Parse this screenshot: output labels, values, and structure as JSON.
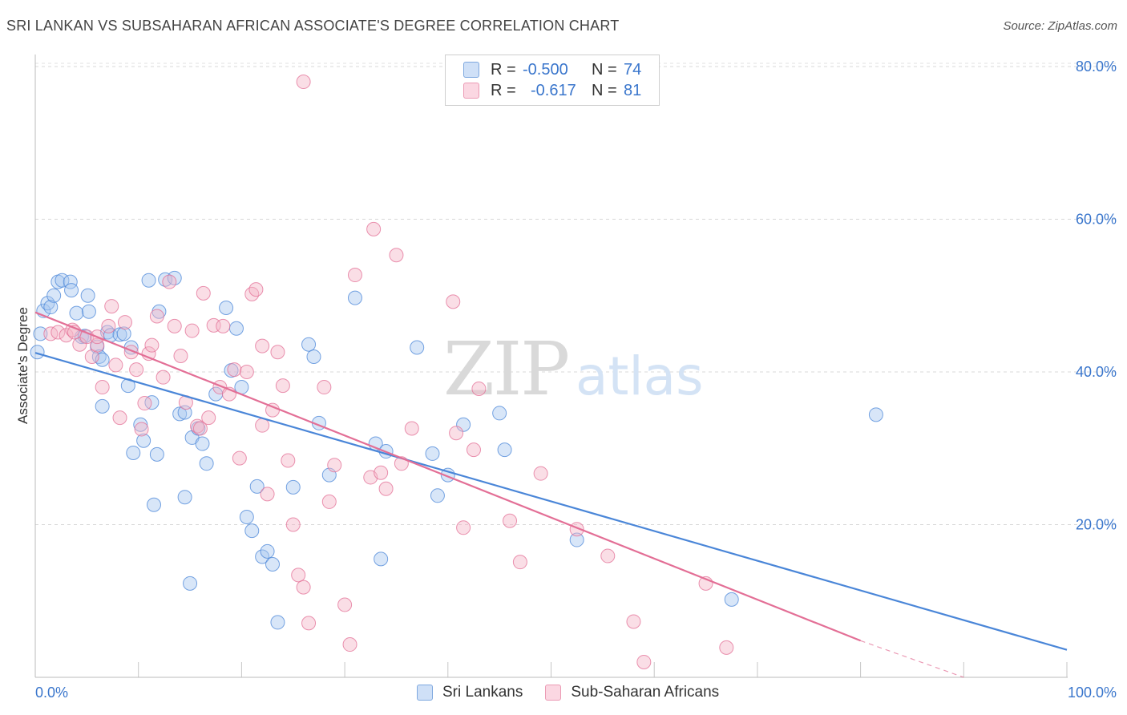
{
  "title": "SRI LANKAN VS SUBSAHARAN AFRICAN ASSOCIATE'S DEGREE CORRELATION CHART",
  "source": "Source: ZipAtlas.com",
  "watermark": {
    "zip": "ZIP",
    "atlas": "atlas"
  },
  "legend": {
    "rows": [
      {
        "r_label": "R =",
        "r_value": "-0.500",
        "n_label": "N =",
        "n_value": "74",
        "color": "#a9c8f0"
      },
      {
        "r_label": "R =",
        "r_value": "-0.617",
        "n_label": "N =",
        "n_value": "81",
        "color": "#f5b5c8"
      }
    ]
  },
  "bottom_legend": [
    {
      "label": "Sri Lankans",
      "color": "#a9c8f0"
    },
    {
      "label": "Sub-Saharan Africans",
      "color": "#f5b5c8"
    }
  ],
  "chart_data": {
    "type": "scatter",
    "title": "SRI LANKAN VS SUBSAHARAN AFRICAN ASSOCIATE'S DEGREE CORRELATION CHART",
    "xlabel": "",
    "ylabel": "Associate's Degree",
    "xlim": [
      0,
      100
    ],
    "ylim": [
      0,
      82
    ],
    "x_tick_labels": [
      "0.0%",
      "100.0%"
    ],
    "y_ticks": [
      20,
      40,
      60,
      80
    ],
    "y_tick_labels": [
      "20.0%",
      "40.0%",
      "60.0%",
      "80.0%"
    ],
    "grid": true,
    "legend_position": "top-center",
    "series": [
      {
        "name": "Sri Lankans",
        "color": "#4a86d8",
        "fill": "#a9c8f0",
        "trend": {
          "x": [
            0,
            100
          ],
          "y": [
            42.5,
            3.6
          ]
        },
        "points": [
          [
            0.2,
            42.6
          ],
          [
            0.5,
            45.0
          ],
          [
            0.8,
            48.0
          ],
          [
            1.2,
            49.0
          ],
          [
            1.5,
            48.5
          ],
          [
            1.8,
            50.0
          ],
          [
            2.2,
            51.8
          ],
          [
            2.6,
            52.0
          ],
          [
            3.4,
            51.8
          ],
          [
            3.5,
            50.7
          ],
          [
            4.0,
            47.7
          ],
          [
            4.5,
            44.6
          ],
          [
            4.8,
            44.7
          ],
          [
            5.2,
            47.9
          ],
          [
            5.1,
            50.0
          ],
          [
            6.0,
            43.3
          ],
          [
            6.2,
            42.0
          ],
          [
            6.5,
            41.6
          ],
          [
            7.0,
            45.2
          ],
          [
            7.3,
            44.8
          ],
          [
            8.2,
            44.9
          ],
          [
            8.6,
            45.0
          ],
          [
            9.3,
            43.2
          ],
          [
            9.0,
            38.2
          ],
          [
            10.2,
            33.1
          ],
          [
            10.5,
            31.0
          ],
          [
            11.0,
            52.0
          ],
          [
            11.3,
            36.0
          ],
          [
            11.8,
            29.2
          ],
          [
            12.0,
            47.9
          ],
          [
            12.6,
            52.1
          ],
          [
            13.5,
            52.3
          ],
          [
            14.0,
            34.5
          ],
          [
            14.5,
            34.7
          ],
          [
            15.2,
            31.4
          ],
          [
            15.8,
            32.6
          ],
          [
            16.2,
            30.6
          ],
          [
            16.6,
            28.0
          ],
          [
            17.5,
            37.1
          ],
          [
            18.5,
            48.4
          ],
          [
            19.0,
            40.2
          ],
          [
            19.5,
            45.7
          ],
          [
            20.0,
            38.0
          ],
          [
            21.0,
            19.2
          ],
          [
            21.5,
            25.0
          ],
          [
            20.5,
            21.0
          ],
          [
            22.0,
            15.8
          ],
          [
            22.5,
            16.5
          ],
          [
            23.0,
            14.8
          ],
          [
            23.5,
            7.2
          ],
          [
            25.0,
            24.9
          ],
          [
            26.5,
            43.6
          ],
          [
            27.0,
            42.0
          ],
          [
            27.5,
            33.3
          ],
          [
            28.5,
            26.5
          ],
          [
            31.0,
            49.7
          ],
          [
            33.0,
            30.6
          ],
          [
            33.5,
            15.5
          ],
          [
            34.0,
            29.6
          ],
          [
            37.0,
            43.2
          ],
          [
            38.5,
            29.3
          ],
          [
            39.0,
            23.8
          ],
          [
            40.0,
            26.5
          ],
          [
            41.5,
            33.1
          ],
          [
            45.0,
            34.6
          ],
          [
            45.5,
            29.8
          ],
          [
            52.5,
            18.0
          ],
          [
            81.5,
            34.4
          ],
          [
            67.5,
            10.2
          ],
          [
            14.5,
            23.6
          ],
          [
            11.5,
            22.6
          ],
          [
            9.5,
            29.4
          ],
          [
            6.5,
            35.5
          ],
          [
            15.0,
            12.3
          ]
        ]
      },
      {
        "name": "Sub-Saharan Africans",
        "color": "#e36f96",
        "fill": "#f5b5c8",
        "trend": {
          "x": [
            0,
            80
          ],
          "y": [
            47.8,
            4.8
          ]
        },
        "trend_dashed": {
          "x": [
            80,
            90
          ],
          "y": [
            4.8,
            0
          ]
        },
        "points": [
          [
            1.5,
            45.0
          ],
          [
            2.2,
            45.2
          ],
          [
            3.0,
            44.8
          ],
          [
            3.6,
            45.5
          ],
          [
            4.3,
            43.6
          ],
          [
            5.0,
            44.6
          ],
          [
            5.5,
            42.0
          ],
          [
            6.0,
            43.5
          ],
          [
            6.5,
            38.0
          ],
          [
            7.1,
            46.0
          ],
          [
            7.4,
            48.6
          ],
          [
            7.8,
            40.9
          ],
          [
            8.2,
            34.0
          ],
          [
            8.7,
            46.5
          ],
          [
            9.3,
            42.6
          ],
          [
            9.8,
            40.3
          ],
          [
            10.3,
            32.5
          ],
          [
            11.0,
            42.4
          ],
          [
            11.3,
            43.5
          ],
          [
            11.8,
            47.3
          ],
          [
            12.4,
            39.3
          ],
          [
            13.0,
            51.8
          ],
          [
            13.5,
            46.0
          ],
          [
            14.1,
            42.1
          ],
          [
            14.6,
            36.0
          ],
          [
            15.2,
            45.4
          ],
          [
            15.7,
            32.9
          ],
          [
            16.3,
            50.3
          ],
          [
            16.8,
            34.0
          ],
          [
            17.3,
            46.1
          ],
          [
            17.9,
            38.0
          ],
          [
            18.2,
            46.0
          ],
          [
            18.8,
            37.1
          ],
          [
            19.3,
            40.3
          ],
          [
            19.8,
            28.7
          ],
          [
            20.5,
            40.0
          ],
          [
            21.0,
            50.2
          ],
          [
            21.4,
            50.8
          ],
          [
            22.0,
            33.0
          ],
          [
            22.5,
            24.0
          ],
          [
            23.0,
            35.0
          ],
          [
            23.5,
            42.6
          ],
          [
            24.0,
            38.2
          ],
          [
            24.5,
            28.4
          ],
          [
            25.0,
            20.0
          ],
          [
            25.5,
            13.4
          ],
          [
            26.0,
            11.8
          ],
          [
            26.5,
            7.1
          ],
          [
            28.0,
            38.0
          ],
          [
            28.5,
            23.0
          ],
          [
            29.0,
            27.8
          ],
          [
            30.0,
            9.5
          ],
          [
            30.5,
            4.3
          ],
          [
            31.0,
            52.7
          ],
          [
            32.5,
            26.2
          ],
          [
            32.8,
            58.7
          ],
          [
            33.5,
            26.8
          ],
          [
            34.0,
            24.7
          ],
          [
            35.0,
            55.3
          ],
          [
            35.5,
            28.0
          ],
          [
            36.5,
            32.6
          ],
          [
            40.5,
            49.2
          ],
          [
            40.8,
            32.0
          ],
          [
            41.5,
            19.6
          ],
          [
            42.5,
            29.8
          ],
          [
            43.0,
            37.8
          ],
          [
            46.0,
            20.5
          ],
          [
            47.0,
            15.1
          ],
          [
            49.0,
            26.7
          ],
          [
            52.5,
            19.4
          ],
          [
            55.5,
            15.9
          ],
          [
            58.0,
            7.3
          ],
          [
            59.0,
            2.0
          ],
          [
            65.0,
            12.3
          ],
          [
            67.0,
            3.9
          ],
          [
            26.0,
            78.0
          ],
          [
            16.0,
            32.6
          ],
          [
            6.0,
            44.6
          ],
          [
            3.8,
            45.2
          ],
          [
            22.0,
            43.4
          ],
          [
            10.6,
            35.9
          ]
        ]
      }
    ]
  }
}
